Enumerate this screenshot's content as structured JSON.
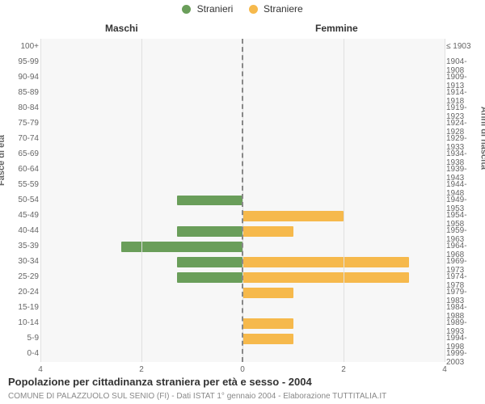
{
  "legend": {
    "male": {
      "label": "Stranieri",
      "color": "#6a9e5a"
    },
    "female": {
      "label": "Straniere",
      "color": "#f6b94c"
    }
  },
  "column_titles": {
    "male": "Maschi",
    "female": "Femmine"
  },
  "axis_titles": {
    "left": "Fasce di età",
    "right": "Anni di nascita"
  },
  "title": "Popolazione per cittadinanza straniera per età e sesso - 2004",
  "subtitle": "COMUNE DI PALAZZUOLO SUL SENIO (FI) - Dati ISTAT 1° gennaio 2004 - Elaborazione TUTTITALIA.IT",
  "chart": {
    "type": "population-pyramid",
    "plot_bg": "#f7f7f7",
    "grid_color": "#e0e0e0",
    "centerline_color": "#888888",
    "xmax": 4,
    "xtick_step": 2,
    "xticks_left": [
      "4",
      "2",
      "0"
    ],
    "xticks_right": [
      "0",
      "2",
      "4"
    ],
    "bar_fill_ratio": 0.68,
    "rows": [
      {
        "age": "100+",
        "birth": "≤ 1903",
        "m": 0,
        "f": 0
      },
      {
        "age": "95-99",
        "birth": "1904-1908",
        "m": 0,
        "f": 0
      },
      {
        "age": "90-94",
        "birth": "1909-1913",
        "m": 0,
        "f": 0
      },
      {
        "age": "85-89",
        "birth": "1914-1918",
        "m": 0,
        "f": 0
      },
      {
        "age": "80-84",
        "birth": "1919-1923",
        "m": 0,
        "f": 0
      },
      {
        "age": "75-79",
        "birth": "1924-1928",
        "m": 0,
        "f": 0
      },
      {
        "age": "70-74",
        "birth": "1929-1933",
        "m": 0,
        "f": 0
      },
      {
        "age": "65-69",
        "birth": "1934-1938",
        "m": 0,
        "f": 0
      },
      {
        "age": "60-64",
        "birth": "1939-1943",
        "m": 0,
        "f": 0
      },
      {
        "age": "55-59",
        "birth": "1944-1948",
        "m": 0,
        "f": 0
      },
      {
        "age": "50-54",
        "birth": "1949-1953",
        "m": 1.3,
        "f": 0
      },
      {
        "age": "45-49",
        "birth": "1954-1958",
        "m": 0,
        "f": 2.0
      },
      {
        "age": "40-44",
        "birth": "1959-1963",
        "m": 1.3,
        "f": 1.0
      },
      {
        "age": "35-39",
        "birth": "1964-1968",
        "m": 2.4,
        "f": 0
      },
      {
        "age": "30-34",
        "birth": "1969-1973",
        "m": 1.3,
        "f": 3.3
      },
      {
        "age": "25-29",
        "birth": "1974-1978",
        "m": 1.3,
        "f": 3.3
      },
      {
        "age": "20-24",
        "birth": "1979-1983",
        "m": 0,
        "f": 1.0
      },
      {
        "age": "15-19",
        "birth": "1984-1988",
        "m": 0,
        "f": 0
      },
      {
        "age": "10-14",
        "birth": "1989-1993",
        "m": 0,
        "f": 1.0
      },
      {
        "age": "5-9",
        "birth": "1994-1998",
        "m": 0,
        "f": 1.0
      },
      {
        "age": "0-4",
        "birth": "1999-2003",
        "m": 0,
        "f": 0
      }
    ]
  }
}
